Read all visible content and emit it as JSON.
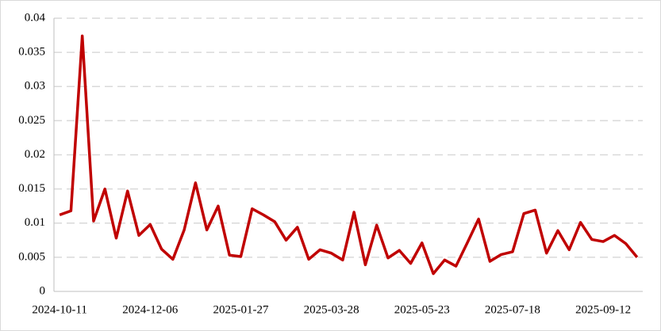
{
  "chart_data": {
    "type": "line",
    "categories": [
      "2024-10-11",
      null,
      null,
      null,
      null,
      null,
      null,
      null,
      "2024-12-06",
      null,
      null,
      null,
      null,
      null,
      null,
      null,
      "2025-01-27",
      null,
      null,
      null,
      null,
      null,
      null,
      null,
      "2025-03-28",
      null,
      null,
      null,
      null,
      null,
      null,
      null,
      "2025-05-23",
      null,
      null,
      null,
      null,
      null,
      null,
      null,
      "2025-07-18",
      null,
      null,
      null,
      null,
      null,
      null,
      null,
      "2025-09-12",
      null,
      null,
      null
    ],
    "values": [
      0.0112,
      0.0118,
      0.0374,
      0.0103,
      0.015,
      0.0078,
      0.0147,
      0.0082,
      0.0098,
      0.0062,
      0.0047,
      0.009,
      0.0159,
      0.009,
      0.0125,
      0.0053,
      0.0051,
      0.0121,
      0.0112,
      0.0102,
      0.0075,
      0.0094,
      0.0047,
      0.0061,
      0.0056,
      0.0046,
      0.0116,
      0.0039,
      0.0097,
      0.0049,
      0.006,
      0.0041,
      0.0071,
      0.0026,
      0.0046,
      0.0037,
      0.0071,
      0.0106,
      0.0044,
      0.0054,
      0.0058,
      0.0114,
      0.0119,
      0.0056,
      0.0089,
      0.0061,
      0.0101,
      0.0076,
      0.0073,
      0.0082,
      0.007,
      0.005
    ],
    "color": "#c00000",
    "ylim": [
      0,
      0.04
    ],
    "yticks": [
      0,
      0.005,
      0.01,
      0.015,
      0.02,
      0.025,
      0.03,
      0.035,
      0.04
    ],
    "grid": true
  }
}
